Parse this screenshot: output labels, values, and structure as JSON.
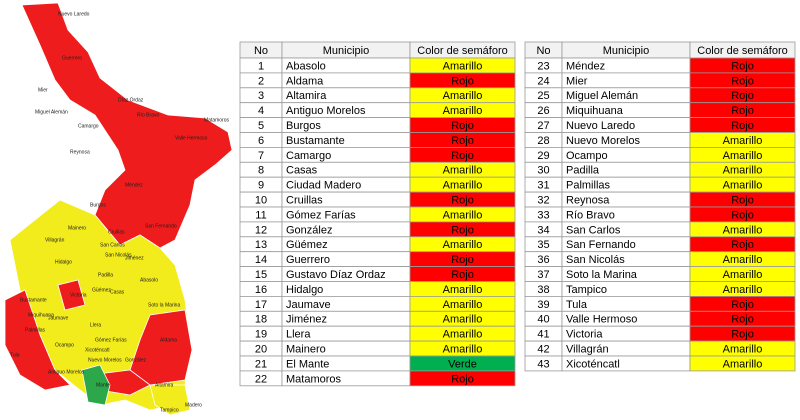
{
  "map": {
    "labels": [
      "Nuevo Laredo",
      "Guerrero",
      "Mier",
      "Miguel Alemán",
      "Camargo",
      "Díaz Ordaz",
      "Río Bravo",
      "Reynosa",
      "Matamoros",
      "Valle Hermoso",
      "Méndez",
      "Burgos",
      "Cruillas",
      "San Fernando",
      "Mainero",
      "Villagrán",
      "San Carlos",
      "San Nicolás",
      "Hidalgo",
      "Jiménez",
      "Padilla",
      "Abasolo",
      "Güémez",
      "Victoria",
      "Casas",
      "Soto la Marina",
      "Jaumave",
      "Palmillas",
      "Llera",
      "Bustamante",
      "Miquihuana",
      "Tula",
      "Ocampo",
      "Xicoténcatl",
      "Gómez Farías",
      "González",
      "Aldama",
      "Antiguo Morelos",
      "Nuevo Morelos",
      "Mante",
      "Altamira",
      "Tampico",
      "Madero"
    ]
  },
  "tables": [
    {
      "header": [
        "No",
        "Municipio",
        "Color de semáforo"
      ],
      "rows": [
        {
          "no": 1,
          "municipio": "Abasolo",
          "semaforo": "Amarillo",
          "color": "#ffff00"
        },
        {
          "no": 2,
          "municipio": "Aldama",
          "semaforo": "Rojo",
          "color": "#ff0000"
        },
        {
          "no": 3,
          "municipio": "Altamira",
          "semaforo": "Amarillo",
          "color": "#ffff00"
        },
        {
          "no": 4,
          "municipio": "Antiguo Morelos",
          "semaforo": "Amarillo",
          "color": "#ffff00"
        },
        {
          "no": 5,
          "municipio": "Burgos",
          "semaforo": "Rojo",
          "color": "#ff0000"
        },
        {
          "no": 6,
          "municipio": "Bustamante",
          "semaforo": "Rojo",
          "color": "#ff0000"
        },
        {
          "no": 7,
          "municipio": "Camargo",
          "semaforo": "Rojo",
          "color": "#ff0000"
        },
        {
          "no": 8,
          "municipio": "Casas",
          "semaforo": "Amarillo",
          "color": "#ffff00"
        },
        {
          "no": 9,
          "municipio": "Ciudad Madero",
          "semaforo": "Amarillo",
          "color": "#ffff00"
        },
        {
          "no": 10,
          "municipio": "Cruillas",
          "semaforo": "Rojo",
          "color": "#ff0000"
        },
        {
          "no": 11,
          "municipio": "Gómez Farías",
          "semaforo": "Amarillo",
          "color": "#ffff00"
        },
        {
          "no": 12,
          "municipio": "González",
          "semaforo": "Rojo",
          "color": "#ff0000"
        },
        {
          "no": 13,
          "municipio": "Güémez",
          "semaforo": "Amarillo",
          "color": "#ffff00"
        },
        {
          "no": 14,
          "municipio": "Guerrero",
          "semaforo": "Rojo",
          "color": "#ff0000"
        },
        {
          "no": 15,
          "municipio": "Gustavo Díaz Ordaz",
          "semaforo": "Rojo",
          "color": "#ff0000"
        },
        {
          "no": 16,
          "municipio": "Hidalgo",
          "semaforo": "Amarillo",
          "color": "#ffff00"
        },
        {
          "no": 17,
          "municipio": "Jaumave",
          "semaforo": "Amarillo",
          "color": "#ffff00"
        },
        {
          "no": 18,
          "municipio": "Jiménez",
          "semaforo": "Amarillo",
          "color": "#ffff00"
        },
        {
          "no": 19,
          "municipio": "Llera",
          "semaforo": "Amarillo",
          "color": "#ffff00"
        },
        {
          "no": 20,
          "municipio": "Mainero",
          "semaforo": "Amarillo",
          "color": "#ffff00"
        },
        {
          "no": 21,
          "municipio": "El Mante",
          "semaforo": "Verde",
          "color": "#00b050"
        },
        {
          "no": 22,
          "municipio": "Matamoros",
          "semaforo": "Rojo",
          "color": "#ff0000"
        }
      ]
    },
    {
      "header": [
        "No",
        "Municipio",
        "Color de semáforo"
      ],
      "rows": [
        {
          "no": 23,
          "municipio": "Méndez",
          "semaforo": "Rojo",
          "color": "#ff0000"
        },
        {
          "no": 24,
          "municipio": "Mier",
          "semaforo": "Rojo",
          "color": "#ff0000"
        },
        {
          "no": 25,
          "municipio": "Miguel Alemán",
          "semaforo": "Rojo",
          "color": "#ff0000"
        },
        {
          "no": 26,
          "municipio": "Miquihuana",
          "semaforo": "Rojo",
          "color": "#ff0000"
        },
        {
          "no": 27,
          "municipio": "Nuevo Laredo",
          "semaforo": "Rojo",
          "color": "#ff0000"
        },
        {
          "no": 28,
          "municipio": "Nuevo Morelos",
          "semaforo": "Amarillo",
          "color": "#ffff00"
        },
        {
          "no": 29,
          "municipio": "Ocampo",
          "semaforo": "Amarillo",
          "color": "#ffff00"
        },
        {
          "no": 30,
          "municipio": "Padilla",
          "semaforo": "Amarillo",
          "color": "#ffff00"
        },
        {
          "no": 31,
          "municipio": "Palmillas",
          "semaforo": "Amarillo",
          "color": "#ffff00"
        },
        {
          "no": 32,
          "municipio": "Reynosa",
          "semaforo": "Rojo",
          "color": "#ff0000"
        },
        {
          "no": 33,
          "municipio": "Río Bravo",
          "semaforo": "Rojo",
          "color": "#ff0000"
        },
        {
          "no": 34,
          "municipio": "San Carlos",
          "semaforo": "Amarillo",
          "color": "#ffff00"
        },
        {
          "no": 35,
          "municipio": "San Fernando",
          "semaforo": "Rojo",
          "color": "#ff0000"
        },
        {
          "no": 36,
          "municipio": "San Nicolás",
          "semaforo": "Amarillo",
          "color": "#ffff00"
        },
        {
          "no": 37,
          "municipio": "Soto la Marina",
          "semaforo": "Amarillo",
          "color": "#ffff00"
        },
        {
          "no": 38,
          "municipio": "Tampico",
          "semaforo": "Amarillo",
          "color": "#ffff00"
        },
        {
          "no": 39,
          "municipio": "Tula",
          "semaforo": "Rojo",
          "color": "#ff0000"
        },
        {
          "no": 40,
          "municipio": "Valle Hermoso",
          "semaforo": "Rojo",
          "color": "#ff0000"
        },
        {
          "no": 41,
          "municipio": "Victoria",
          "semaforo": "Rojo",
          "color": "#ff0000"
        },
        {
          "no": 42,
          "municipio": "Villagrán",
          "semaforo": "Amarillo",
          "color": "#ffff00"
        },
        {
          "no": 43,
          "municipio": "Xicoténcatl",
          "semaforo": "Amarillo",
          "color": "#ffff00"
        }
      ]
    }
  ]
}
